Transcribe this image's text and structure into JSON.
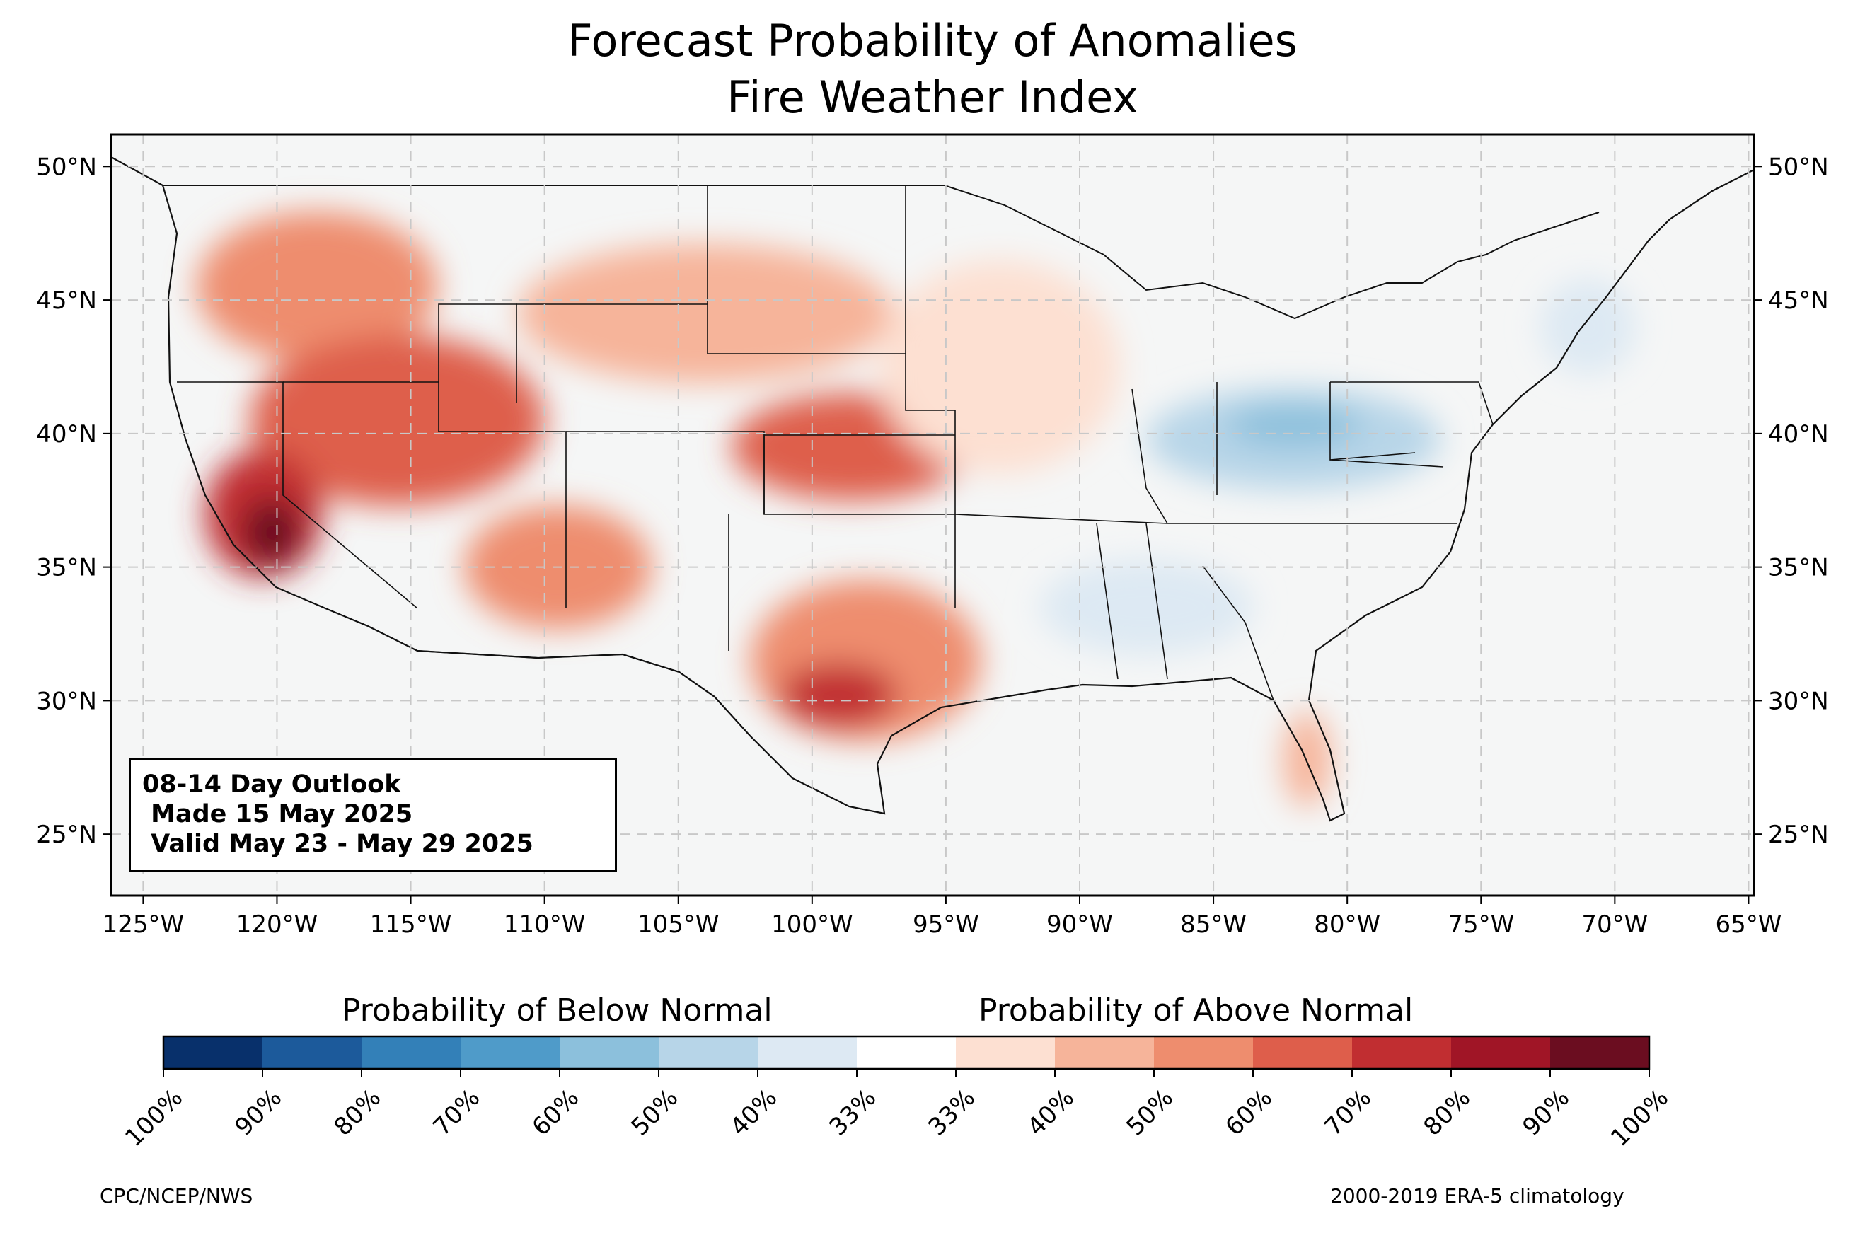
{
  "title": {
    "line1": "Forecast Probability of Anomalies",
    "line2": "Fire Weather Index"
  },
  "info_box": {
    "line1": "08-14 Day Outlook",
    "line2": " Made 15 May 2025",
    "line3": " Valid May 23 - May 29 2025"
  },
  "axes": {
    "longitude_labels": [
      "125°W",
      "120°W",
      "115°W",
      "110°W",
      "105°W",
      "100°W",
      "95°W",
      "90°W",
      "85°W",
      "80°W",
      "75°W",
      "70°W",
      "65°W"
    ],
    "longitude_values": [
      -125,
      -120,
      -115,
      -110,
      -105,
      -100,
      -95,
      -90,
      -85,
      -80,
      -75,
      -70,
      -65
    ],
    "latitude_labels": [
      "50°N",
      "45°N",
      "40°N",
      "35°N",
      "30°N",
      "25°N"
    ],
    "latitude_values": [
      50,
      45,
      40,
      35,
      30,
      25
    ],
    "lon_range": [
      -126.2,
      -64.8
    ],
    "lat_range": [
      22.7,
      51.2
    ],
    "gridlines": true
  },
  "colorbar": {
    "below_heading": "Probability of Below Normal",
    "above_heading": "Probability of Above Normal",
    "tick_labels": [
      "100%",
      "90%",
      "80%",
      "70%",
      "60%",
      "50%",
      "40%",
      "33%",
      "33%",
      "40%",
      "50%",
      "60%",
      "70%",
      "80%",
      "90%",
      "100%"
    ],
    "colors": [
      "#08306b",
      "#1c5a9b",
      "#3380b8",
      "#4f9bc9",
      "#8cc0dc",
      "#b7d5e8",
      "#dde9f3",
      "#ffffff",
      "#fde0d2",
      "#f6b49a",
      "#ee8d6e",
      "#de5e4b",
      "#c12e31",
      "#a01526",
      "#6b0d20"
    ]
  },
  "map": {
    "ocean_color": "#f5f6f6",
    "land_color": "#f5f6f6",
    "regions": [
      {
        "name": "pacific-northwest-above",
        "level": 4,
        "color": "#ee8d6e",
        "center": [
          -118.5,
          45.5
        ],
        "radius": [
          4.5,
          2.8
        ]
      },
      {
        "name": "great-basin-above",
        "level": 5,
        "color": "#de5e4b",
        "center": [
          -115.5,
          40.5
        ],
        "radius": [
          5.5,
          3.2
        ]
      },
      {
        "name": "california-above",
        "level": 6,
        "color": "#c12e31",
        "center": [
          -120.5,
          37.0
        ],
        "radius": [
          2.2,
          2.4
        ]
      },
      {
        "name": "central-valley-peak",
        "level": 7,
        "color": "#6b0d20",
        "center": [
          -120.2,
          36.3
        ],
        "radius": [
          1.1,
          1.3
        ]
      },
      {
        "name": "four-corners-above",
        "level": 4,
        "color": "#ee8d6e",
        "center": [
          -109.5,
          35.0
        ],
        "radius": [
          3.5,
          2.3
        ]
      },
      {
        "name": "northern-plains-above",
        "level": 3,
        "color": "#f6b49a",
        "center": [
          -104.0,
          44.5
        ],
        "radius": [
          7.0,
          2.6
        ]
      },
      {
        "name": "central-plains-above",
        "level": 5,
        "color": "#de5e4b",
        "center": [
          -98.5,
          39.5
        ],
        "radius": [
          4.5,
          2.0
        ]
      },
      {
        "name": "upper-midwest-above",
        "level": 2,
        "color": "#fde0d2",
        "center": [
          -93.0,
          42.5
        ],
        "radius": [
          4.5,
          4.0
        ]
      },
      {
        "name": "texas-above",
        "level": 4,
        "color": "#ee8d6e",
        "center": [
          -98.0,
          31.5
        ],
        "radius": [
          4.3,
          3.0
        ]
      },
      {
        "name": "texas-peak",
        "level": 6,
        "color": "#c12e31",
        "center": [
          -99.0,
          30.2
        ],
        "radius": [
          2.2,
          1.2
        ]
      },
      {
        "name": "florida-above",
        "level": 3,
        "color": "#f6b49a",
        "center": [
          -81.5,
          27.8
        ],
        "radius": [
          0.9,
          1.8
        ]
      },
      {
        "name": "ohio-valley-below",
        "level": -3,
        "color": "#b7d5e8",
        "center": [
          -82.0,
          39.8
        ],
        "radius": [
          5.5,
          1.9
        ]
      },
      {
        "name": "ohio-valley-core-below",
        "level": -4,
        "color": "#8cc0dc",
        "center": [
          -82.0,
          40.3
        ],
        "radius": [
          2.5,
          0.8
        ]
      },
      {
        "name": "gulf-coast-below",
        "level": -2,
        "color": "#dde9f3",
        "center": [
          -87.5,
          33.5
        ],
        "radius": [
          4.0,
          1.8
        ]
      },
      {
        "name": "new-england-below",
        "level": -2,
        "color": "#dde9f3",
        "center": [
          -71.0,
          44.0
        ],
        "radius": [
          1.8,
          1.8
        ]
      }
    ]
  },
  "footer": {
    "left": "CPC/NCEP/NWS",
    "right": "2000-2019 ERA-5 climatology"
  }
}
